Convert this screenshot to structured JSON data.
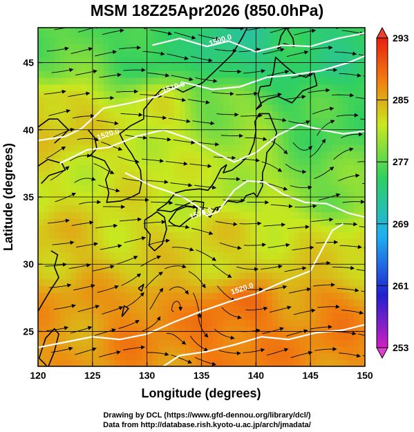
{
  "title": "MSM 18Z25Apr2026 (850.0hPa)",
  "credits": {
    "line1": "Drawing by DCL (https://www.gfd-dennou.org/library/dcl/)",
    "line2": "Data from http://database.rish.kyoto-u.ac.jp/arch/jmadata/"
  },
  "chart_data": {
    "type": "heatmap",
    "title": "MSM 18Z25Apr2026 (850.0hPa)",
    "xlabel": "Longitude (degrees)",
    "ylabel": "Latitude  (degrees)",
    "xlim": [
      120,
      150
    ],
    "ylim": [
      22.4,
      47.6
    ],
    "xticks": [
      120,
      125,
      130,
      135,
      140,
      145,
      150
    ],
    "yticks": [
      25,
      30,
      35,
      40,
      45
    ],
    "grid": true,
    "colorbar": {
      "min": 253,
      "max": 293,
      "ticks": [
        253,
        261,
        269,
        277,
        285,
        293
      ],
      "colors": [
        "#d020c0",
        "#2020d0",
        "#20b0f0",
        "#30d060",
        "#c8e820",
        "#f08010",
        "#e82010"
      ]
    },
    "temperature_field": {
      "description_units": "K",
      "samples": [
        {
          "lon": 122,
          "lat": 46,
          "value": 277
        },
        {
          "lon": 130,
          "lat": 46,
          "value": 275
        },
        {
          "lon": 138,
          "lat": 46,
          "value": 273
        },
        {
          "lon": 146,
          "lat": 46,
          "value": 274
        },
        {
          "lon": 122,
          "lat": 41,
          "value": 284
        },
        {
          "lon": 130,
          "lat": 41,
          "value": 282
        },
        {
          "lon": 138,
          "lat": 41,
          "value": 279
        },
        {
          "lon": 146,
          "lat": 41,
          "value": 276
        },
        {
          "lon": 122,
          "lat": 36,
          "value": 282
        },
        {
          "lon": 130,
          "lat": 36,
          "value": 282
        },
        {
          "lon": 138,
          "lat": 36,
          "value": 281
        },
        {
          "lon": 146,
          "lat": 36,
          "value": 278
        },
        {
          "lon": 122,
          "lat": 31,
          "value": 284
        },
        {
          "lon": 130,
          "lat": 31,
          "value": 283
        },
        {
          "lon": 138,
          "lat": 31,
          "value": 283
        },
        {
          "lon": 146,
          "lat": 31,
          "value": 283
        },
        {
          "lon": 122,
          "lat": 26,
          "value": 286
        },
        {
          "lon": 130,
          "lat": 26,
          "value": 287
        },
        {
          "lon": 138,
          "lat": 26,
          "value": 288
        },
        {
          "lon": 146,
          "lat": 26,
          "value": 287
        }
      ]
    },
    "contour_labels": [
      "1500.0",
      "1510.0",
      "1520.0",
      "1530.0",
      "1520.0"
    ]
  }
}
